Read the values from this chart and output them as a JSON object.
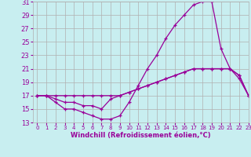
{
  "xlabel": "Windchill (Refroidissement éolien,°C)",
  "bg_color": "#c8eef0",
  "line_color": "#990099",
  "grid_color": "#b0b0b0",
  "xlim": [
    -0.5,
    23
  ],
  "ylim": [
    13,
    31
  ],
  "xticks": [
    0,
    1,
    2,
    3,
    4,
    5,
    6,
    7,
    8,
    9,
    10,
    11,
    12,
    13,
    14,
    15,
    16,
    17,
    18,
    19,
    20,
    21,
    22,
    23
  ],
  "yticks": [
    13,
    15,
    17,
    19,
    21,
    23,
    25,
    27,
    29,
    31
  ],
  "line1_x": [
    0,
    1,
    2,
    3,
    4,
    5,
    6,
    7,
    8,
    9,
    10,
    11,
    12,
    13,
    14,
    15,
    16,
    17,
    18,
    19,
    20,
    21,
    22,
    23
  ],
  "line1_y": [
    17,
    17,
    16,
    15,
    15,
    14.5,
    14,
    13.5,
    13.5,
    14,
    16,
    18.5,
    21,
    23,
    25.5,
    27.5,
    29,
    30.5,
    31,
    31,
    24,
    21,
    19.5,
    17
  ],
  "line2_x": [
    0,
    1,
    2,
    3,
    4,
    5,
    6,
    7,
    8,
    9,
    10,
    11,
    12,
    13,
    14,
    15,
    16,
    17,
    18,
    19,
    20,
    21,
    22,
    23
  ],
  "line2_y": [
    17,
    17,
    17,
    17,
    17,
    17,
    17,
    17,
    17,
    17,
    17.5,
    18,
    18.5,
    19,
    19.5,
    20,
    20.5,
    21,
    21,
    21,
    21,
    21,
    20,
    17
  ],
  "line3_x": [
    0,
    1,
    2,
    3,
    4,
    5,
    6,
    7,
    8,
    9,
    10,
    11,
    12,
    13,
    14,
    15,
    16,
    17,
    18,
    19,
    20,
    21,
    22,
    23
  ],
  "line3_y": [
    17,
    17,
    16.5,
    16,
    16,
    15.5,
    15.5,
    15,
    16.5,
    17,
    17.5,
    18,
    18.5,
    19,
    19.5,
    20,
    20.5,
    21,
    21,
    21,
    21,
    21,
    20,
    17
  ]
}
